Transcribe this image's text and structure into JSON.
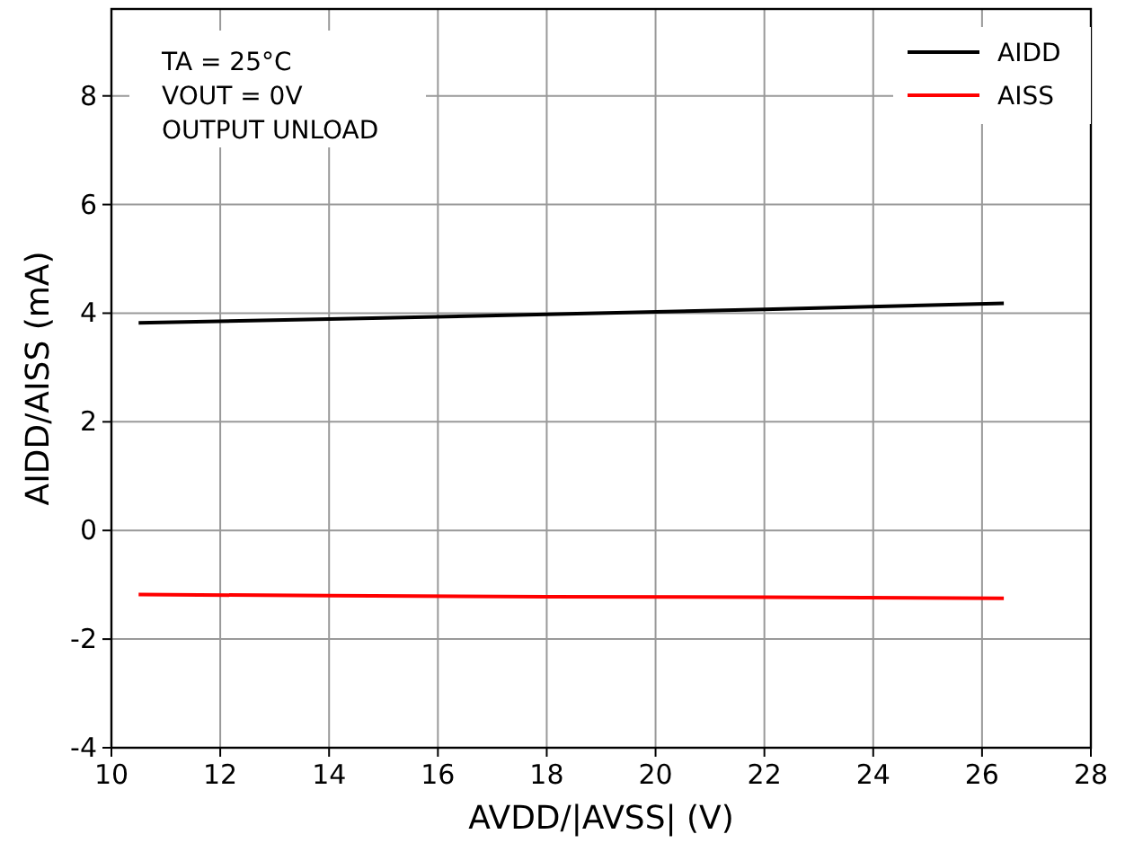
{
  "chart_data": {
    "type": "line",
    "xlabel": "AVDD/|AVSS| (V)",
    "ylabel": "AIDD/AISS (mA)",
    "annotations": [
      "TA = 25°C",
      "VOUT = 0V",
      "OUTPUT UNLOAD"
    ],
    "x": [
      10.5,
      14,
      18,
      22,
      26.4
    ],
    "series": [
      {
        "name": "AIDD",
        "color": "#000000",
        "values": [
          3.82,
          3.89,
          3.98,
          4.07,
          4.18
        ]
      },
      {
        "name": "AISS",
        "color": "#ff0000",
        "values": [
          -1.18,
          -1.2,
          -1.22,
          -1.23,
          -1.25
        ]
      }
    ],
    "xlim": [
      10,
      28
    ],
    "xticks": [
      10,
      12,
      14,
      16,
      18,
      20,
      22,
      24,
      26,
      28
    ],
    "ylim": [
      -4,
      9.6
    ],
    "yticks": [
      -4,
      -2,
      0,
      2,
      4,
      6,
      8
    ],
    "grid": true,
    "legend": "top right",
    "line_style": "solid",
    "marker": "none"
  }
}
